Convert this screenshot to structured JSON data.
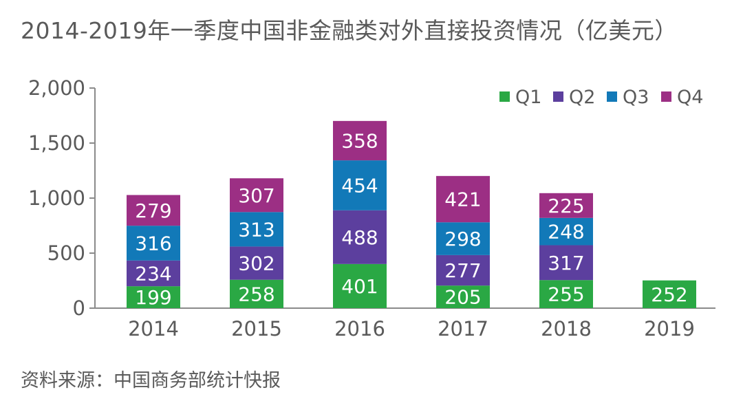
{
  "chart_data": {
    "type": "bar",
    "stacked": true,
    "title": "2014-2019年一季度中国非金融类对外直接投资情况（亿美元）",
    "categories": [
      "2014",
      "2015",
      "2016",
      "2017",
      "2018",
      "2019"
    ],
    "series": [
      {
        "name": "Q1",
        "color": "#2aa844",
        "values": [
          199,
          258,
          401,
          205,
          255,
          252
        ]
      },
      {
        "name": "Q2",
        "color": "#5c3f9e",
        "values": [
          234,
          302,
          488,
          277,
          317,
          null
        ]
      },
      {
        "name": "Q3",
        "color": "#1279b8",
        "values": [
          316,
          313,
          454,
          298,
          248,
          null
        ]
      },
      {
        "name": "Q4",
        "color": "#9c2f84",
        "values": [
          279,
          307,
          358,
          421,
          225,
          null
        ]
      }
    ],
    "ylim": [
      0,
      2000
    ],
    "yticks": [
      0,
      500,
      1000,
      1500,
      2000
    ],
    "ytick_labels": [
      "0",
      "500",
      "1,000",
      "1,500",
      "2,000"
    ],
    "legend_position": "top-right",
    "grid": false,
    "source": "资料来源：中国商务部统计快报"
  }
}
